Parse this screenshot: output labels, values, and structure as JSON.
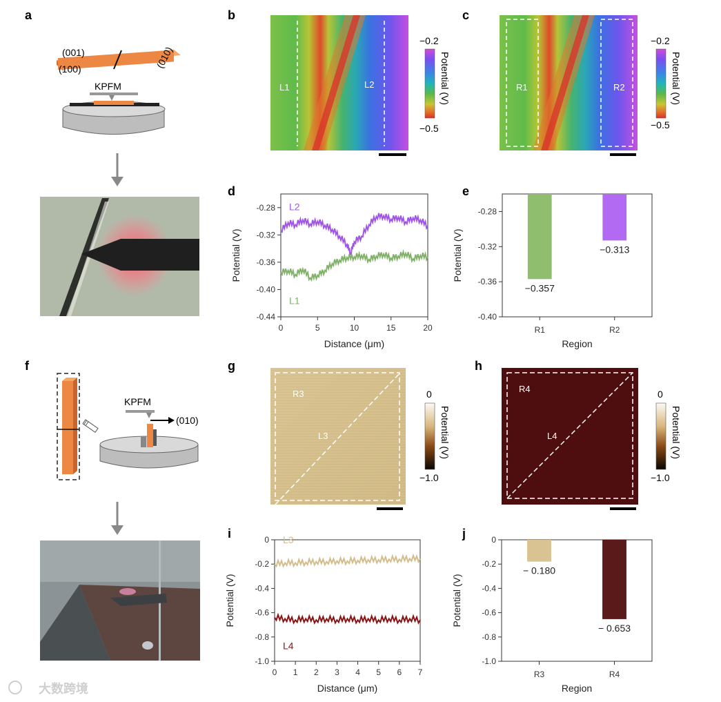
{
  "panels": {
    "a": {
      "label": "a",
      "facet_001": "(001)",
      "facet_100": "(100)",
      "facet_010": "(010)",
      "tip_label": "KPFM"
    },
    "b": {
      "label": "b",
      "line_left": "L1",
      "line_right": "L2",
      "colorbar_top": "−0.2",
      "colorbar_bottom": "−0.5",
      "colorbar_title": "Potential (V)"
    },
    "c": {
      "label": "c",
      "region_left": "R1",
      "region_right": "R2",
      "colorbar_top": "−0.2",
      "colorbar_bottom": "−0.5",
      "colorbar_title": "Potential (V)"
    },
    "f": {
      "label": "f",
      "tip_label": "KPFM",
      "direction_label": "(010)"
    },
    "g": {
      "label": "g",
      "region": "R3",
      "line": "L3",
      "colorbar_top": "0",
      "colorbar_bottom": "−1.0",
      "colorbar_title": "Potential (V)"
    },
    "h": {
      "label": "h",
      "region": "R4",
      "line": "L4",
      "colorbar_top": "0",
      "colorbar_bottom": "−1.0",
      "colorbar_title": "Potential (V)"
    }
  },
  "chart_data": [
    {
      "id": "d",
      "panel_label": "d",
      "type": "line",
      "xlabel": "Distance (μm)",
      "ylabel": "Potential (V)",
      "xlim": [
        0,
        20
      ],
      "ylim": [
        -0.44,
        -0.26
      ],
      "xticks": [
        "0",
        "5",
        "10",
        "15",
        "20"
      ],
      "yticks": [
        "-0.28",
        "-0.32",
        "-0.36",
        "-0.40",
        "-0.44"
      ],
      "series": [
        {
          "name": "L2",
          "color": "#a055e6",
          "x": [
            0,
            1,
            2,
            3,
            4,
            5,
            6,
            7,
            8,
            9,
            9.5,
            10,
            11,
            12,
            13,
            14,
            15,
            16,
            17,
            18,
            19,
            20
          ],
          "y": [
            -0.314,
            -0.302,
            -0.305,
            -0.298,
            -0.304,
            -0.3,
            -0.306,
            -0.312,
            -0.322,
            -0.334,
            -0.347,
            -0.33,
            -0.322,
            -0.305,
            -0.293,
            -0.292,
            -0.297,
            -0.294,
            -0.301,
            -0.295,
            -0.298,
            -0.307
          ]
        },
        {
          "name": "L1",
          "color": "#82b26a",
          "x": [
            0,
            1,
            2,
            3,
            4,
            5,
            6,
            7,
            8,
            9,
            10,
            11,
            12,
            13,
            14,
            15,
            16,
            17,
            18,
            19,
            20
          ],
          "y": [
            -0.375,
            -0.372,
            -0.378,
            -0.37,
            -0.383,
            -0.379,
            -0.372,
            -0.362,
            -0.357,
            -0.353,
            -0.352,
            -0.35,
            -0.356,
            -0.351,
            -0.348,
            -0.354,
            -0.351,
            -0.347,
            -0.355,
            -0.35,
            -0.352
          ]
        }
      ]
    },
    {
      "id": "e",
      "panel_label": "e",
      "type": "bar",
      "xlabel": "Region",
      "ylabel": "Potential (V)",
      "ylim": [
        -0.4,
        -0.26
      ],
      "yticks": [
        "-0.28",
        "-0.32",
        "-0.36",
        "-0.40"
      ],
      "categories": [
        "R1",
        "R2"
      ],
      "values": [
        -0.357,
        -0.313
      ],
      "value_labels": [
        "−0.357",
        "−0.313"
      ],
      "colors": [
        "#8fbf6e",
        "#b26af2"
      ]
    },
    {
      "id": "i",
      "panel_label": "i",
      "type": "line",
      "xlabel": "Distance (μm)",
      "ylabel": "Potential (V)",
      "xlim": [
        0,
        7
      ],
      "ylim": [
        -1.0,
        0
      ],
      "xticks": [
        "0",
        "1",
        "2",
        "3",
        "4",
        "5",
        "6",
        "7"
      ],
      "yticks": [
        "0",
        "-0.2",
        "-0.4",
        "-0.6",
        "-0.8",
        "-1.0"
      ],
      "series": [
        {
          "name": "L3",
          "color": "#d3bd8c",
          "x": [
            0,
            0.5,
            1,
            1.5,
            2,
            2.5,
            3,
            3.5,
            4,
            4.5,
            5,
            5.5,
            6,
            6.5,
            7
          ],
          "y": [
            -0.2,
            -0.19,
            -0.19,
            -0.185,
            -0.18,
            -0.18,
            -0.175,
            -0.175,
            -0.17,
            -0.165,
            -0.165,
            -0.16,
            -0.16,
            -0.155,
            -0.155
          ]
        },
        {
          "name": "L4",
          "color": "#8a1414",
          "x": [
            0,
            0.5,
            1,
            1.5,
            2,
            2.5,
            3,
            3.5,
            4,
            4.5,
            5,
            5.5,
            6,
            6.5,
            7
          ],
          "y": [
            -0.64,
            -0.65,
            -0.66,
            -0.65,
            -0.66,
            -0.65,
            -0.66,
            -0.65,
            -0.66,
            -0.65,
            -0.66,
            -0.65,
            -0.66,
            -0.65,
            -0.66
          ]
        }
      ]
    },
    {
      "id": "j",
      "panel_label": "j",
      "type": "bar",
      "xlabel": "Region",
      "ylabel": "Potential (V)",
      "ylim": [
        -1.0,
        0
      ],
      "yticks": [
        "0",
        "-0.2",
        "-0.4",
        "-0.6",
        "-0.8",
        "-1.0"
      ],
      "categories": [
        "R3",
        "R4"
      ],
      "values": [
        -0.18,
        -0.653
      ],
      "value_labels": [
        "− 0.180",
        "− 0.653"
      ],
      "colors": [
        "#d9c393",
        "#5a1a1a"
      ]
    }
  ],
  "watermark": "大数跨境"
}
